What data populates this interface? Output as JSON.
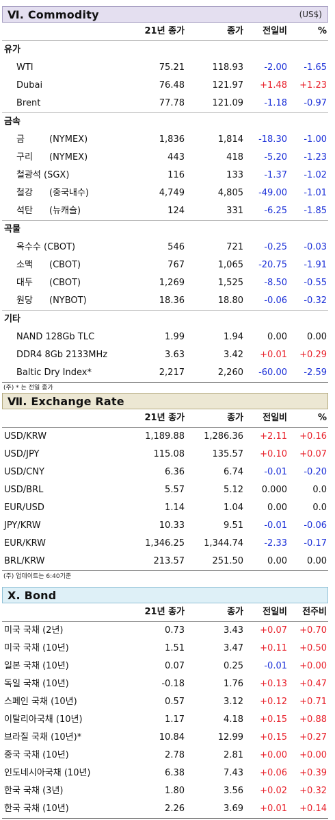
{
  "commodity": {
    "title": "Ⅵ. Commodity",
    "unit": "(US$)",
    "headers": [
      "21년 종가",
      "종가",
      "전일비",
      "%"
    ],
    "groups": [
      {
        "name": "유가",
        "rows": [
          {
            "name": "WTI",
            "sub": "",
            "y21": "75.21",
            "close": "118.93",
            "chg": "-2.00",
            "pct": "-1.65"
          },
          {
            "name": "Dubai",
            "sub": "",
            "y21": "76.48",
            "close": "121.97",
            "chg": "+1.48",
            "pct": "+1.23"
          },
          {
            "name": "Brent",
            "sub": "",
            "y21": "77.78",
            "close": "121.09",
            "chg": "-1.18",
            "pct": "-0.97"
          }
        ]
      },
      {
        "name": "금속",
        "rows": [
          {
            "name": "금",
            "sub": "(NYMEX)",
            "y21": "1,836",
            "close": "1,814",
            "chg": "-18.30",
            "pct": "-1.00"
          },
          {
            "name": "구리",
            "sub": "(NYMEX)",
            "y21": "443",
            "close": "418",
            "chg": "-5.20",
            "pct": "-1.23"
          },
          {
            "name": "철광석 (SGX)",
            "sub": "",
            "y21": "116",
            "close": "133",
            "chg": "-1.37",
            "pct": "-1.02"
          },
          {
            "name": "철강",
            "sub": "(중국내수)",
            "y21": "4,749",
            "close": "4,805",
            "chg": "-49.00",
            "pct": "-1.01"
          },
          {
            "name": "석탄",
            "sub": "(뉴캐슬)",
            "y21": "124",
            "close": "331",
            "chg": "-6.25",
            "pct": "-1.85"
          }
        ]
      },
      {
        "name": "곡물",
        "rows": [
          {
            "name": "옥수수 (CBOT)",
            "sub": "",
            "y21": "546",
            "close": "721",
            "chg": "-0.25",
            "pct": "-0.03"
          },
          {
            "name": "소맥",
            "sub": "(CBOT)",
            "y21": "767",
            "close": "1,065",
            "chg": "-20.75",
            "pct": "-1.91"
          },
          {
            "name": "대두",
            "sub": "(CBOT)",
            "y21": "1,269",
            "close": "1,525",
            "chg": "-8.50",
            "pct": "-0.55"
          },
          {
            "name": "원당",
            "sub": "(NYBOT)",
            "y21": "18.36",
            "close": "18.80",
            "chg": "-0.06",
            "pct": "-0.32"
          }
        ]
      },
      {
        "name": "기타",
        "rows": [
          {
            "name": "NAND 128Gb TLC",
            "sub": "",
            "y21": "1.99",
            "close": "1.94",
            "chg": "0.00",
            "pct": "0.00"
          },
          {
            "name": "DDR4 8Gb 2133MHz",
            "sub": "",
            "y21": "3.63",
            "close": "3.42",
            "chg": "+0.01",
            "pct": "+0.29"
          },
          {
            "name": "Baltic Dry Index*",
            "sub": "",
            "y21": "2,217",
            "close": "2,260",
            "chg": "-60.00",
            "pct": "-2.59"
          }
        ]
      }
    ],
    "note": "(주) * 는 전일 종가"
  },
  "fx": {
    "title": "Ⅶ. Exchange Rate",
    "headers": [
      "21년 종가",
      "종가",
      "전일비",
      "%"
    ],
    "rows": [
      {
        "name": "USD/KRW",
        "y21": "1,189.88",
        "close": "1,286.36",
        "chg": "+2.11",
        "pct": "+0.16"
      },
      {
        "name": "USD/JPY",
        "y21": "115.08",
        "close": "135.57",
        "chg": "+0.10",
        "pct": "+0.07"
      },
      {
        "name": "USD/CNY",
        "y21": "6.36",
        "close": "6.74",
        "chg": "-0.01",
        "pct": "-0.20"
      },
      {
        "name": "USD/BRL",
        "y21": "5.57",
        "close": "5.12",
        "chg": "0.000",
        "pct": "0.0"
      },
      {
        "name": "EUR/USD",
        "y21": "1.14",
        "close": "1.04",
        "chg": "0.00",
        "pct": "0.0"
      },
      {
        "name": "JPY/KRW",
        "y21": "10.33",
        "close": "9.51",
        "chg": "-0.01",
        "pct": "-0.06"
      },
      {
        "name": "EUR/KRW",
        "y21": "1,346.25",
        "close": "1,344.74",
        "chg": "-2.33",
        "pct": "-0.17"
      },
      {
        "name": "BRL/KRW",
        "y21": "213.57",
        "close": "251.50",
        "chg": "0.00",
        "pct": "0.00"
      }
    ],
    "note": "(주) 업데이트는 6:40기준"
  },
  "bond": {
    "title": "X. Bond",
    "headers": [
      "21년 종가",
      "종가",
      "전일비",
      "전주비"
    ],
    "rows": [
      {
        "name": "미국 국채 (2년)",
        "y21": "0.73",
        "close": "3.43",
        "chg": "+0.07",
        "pct": "+0.70"
      },
      {
        "name": "미국 국채 (10년)",
        "y21": "1.51",
        "close": "3.47",
        "chg": "+0.11",
        "pct": "+0.50"
      },
      {
        "name": "일본 국채 (10년)",
        "y21": "0.07",
        "close": "0.25",
        "chg": "-0.01",
        "pct": "+0.00"
      },
      {
        "name": "독일 국채 (10년)",
        "y21": "-0.18",
        "close": "1.76",
        "chg": "+0.13",
        "pct": "+0.47"
      },
      {
        "name": "스페인 국채 (10년)",
        "y21": "0.57",
        "close": "3.12",
        "chg": "+0.12",
        "pct": "+0.71"
      },
      {
        "name": "이탈리아국채 (10년)",
        "y21": "1.17",
        "close": "4.18",
        "chg": "+0.15",
        "pct": "+0.88"
      },
      {
        "name": "브라질 국채 (10년)*",
        "y21": "10.84",
        "close": "12.99",
        "chg": "+0.15",
        "pct": "+0.27"
      },
      {
        "name": "중국 국채 (10년)",
        "y21": "2.78",
        "close": "2.81",
        "chg": "+0.00",
        "pct": "+0.00"
      },
      {
        "name": "인도네시아국채 (10년)",
        "y21": "6.38",
        "close": "7.43",
        "chg": "+0.06",
        "pct": "+0.39"
      },
      {
        "name": "한국 국채 (3년)",
        "y21": "1.80",
        "close": "3.56",
        "chg": "+0.02",
        "pct": "+0.32"
      },
      {
        "name": "한국 국채 (10년)",
        "y21": "2.26",
        "close": "3.69",
        "chg": "+0.01",
        "pct": "+0.14"
      }
    ]
  },
  "colors": {
    "up": "#e8202a",
    "down": "#1a2fd8",
    "flat": "#111111"
  }
}
